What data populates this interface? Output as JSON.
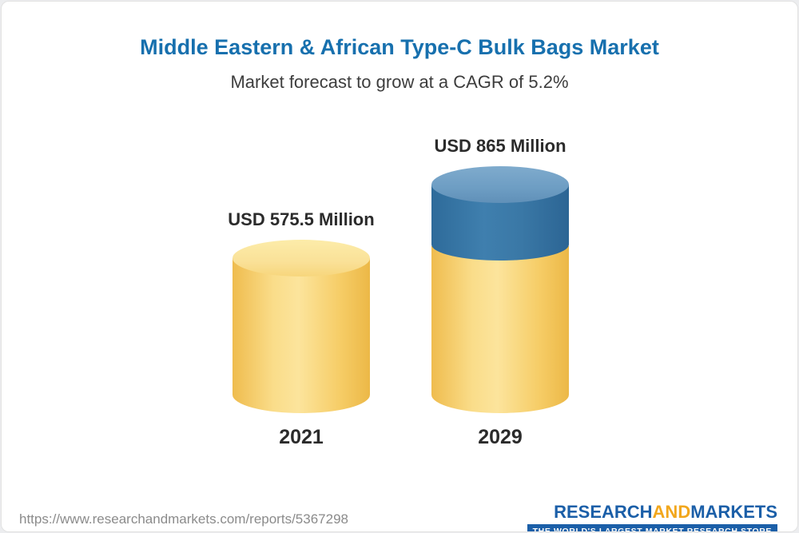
{
  "page": {
    "title": "Middle Eastern & African Type-C Bulk Bags Market",
    "subtitle": "Market forecast to grow at a CAGR of 5.2%"
  },
  "chart_data": {
    "type": "bar",
    "subtype": "3d-cylinder",
    "title": "Middle Eastern & African Type-C Bulk Bags Market",
    "subtitle": "Market forecast to grow at a CAGR of 5.2%",
    "cagr_percent": 5.2,
    "categories": [
      "2021",
      "2029"
    ],
    "values": [
      575.5,
      865
    ],
    "unit": "USD Million",
    "data_labels": [
      "USD 575.5 Million",
      "USD 865 Million"
    ],
    "legend": "none",
    "grid": false,
    "colors": {
      "bar_base": "#f6cd67",
      "bar_base_top": "#fae198",
      "bar_growth": "#34719f",
      "bar_growth_top": "#6d9dc3",
      "title": "#1770ae"
    }
  },
  "bars": [
    {
      "label": "USD 575.5 Million",
      "year": "2021"
    },
    {
      "label": "USD 865 Million",
      "year": "2029"
    }
  ],
  "footer": {
    "url": "https://www.researchandmarkets.com/reports/5367298",
    "logo": {
      "research": "RESEARCH",
      "and": "AND",
      "markets": "MARKETS",
      "tagline": "THE WORLD'S LARGEST MARKET RESEARCH STORE"
    }
  }
}
